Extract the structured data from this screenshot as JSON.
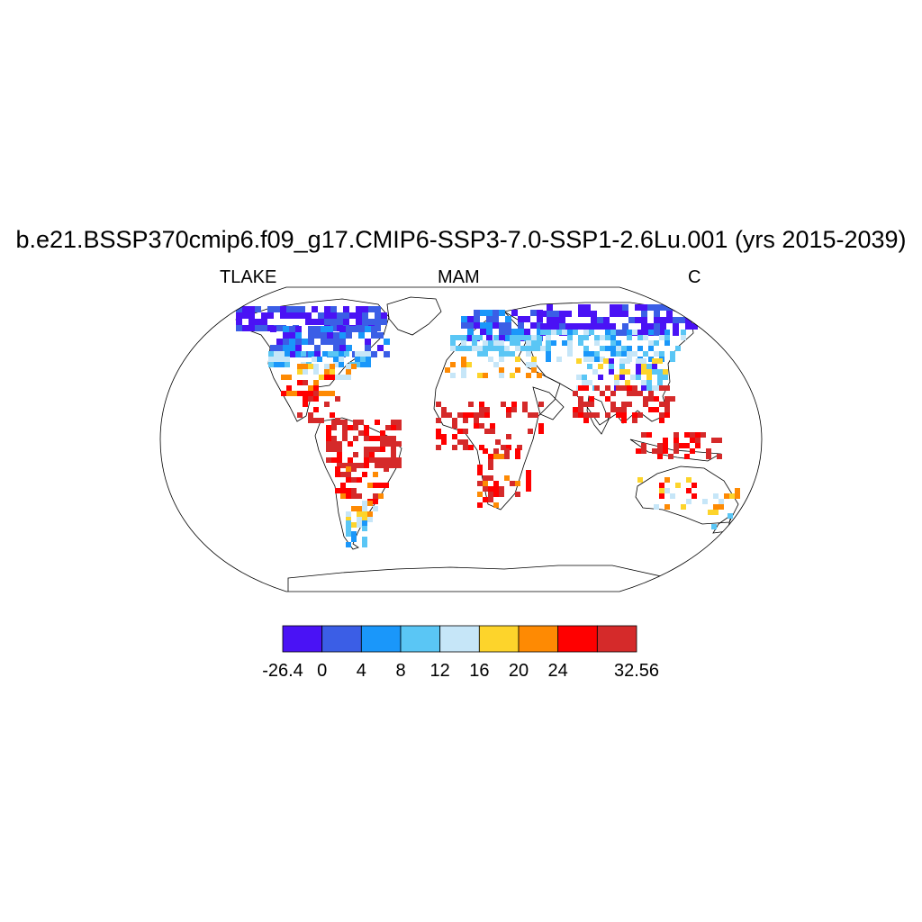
{
  "title": "b.e21.BSSP370cmip6.f09_g17.CMIP6-SSP3-7.0-SSP1-2.6Lu.001 (yrs 2015-2039)",
  "left_string": "TLAKE",
  "center_string": "MAM",
  "right_string": "C",
  "colorbar": {
    "colors": [
      "#4a12f5",
      "#3b5ee6",
      "#1a97fa",
      "#5ac6f5",
      "#c6e6f8",
      "#fdd42b",
      "#fe8a03",
      "#ff0000",
      "#d52a2a"
    ],
    "labels": [
      "-26.4",
      "0",
      "4",
      "8",
      "12",
      "16",
      "20",
      "24",
      "32.56"
    ],
    "label_boundaries": [
      0,
      1,
      2,
      3,
      4,
      5,
      6,
      7,
      9
    ]
  },
  "map": {
    "projection": "Robinson",
    "land_outline_color": "#000000"
  }
}
